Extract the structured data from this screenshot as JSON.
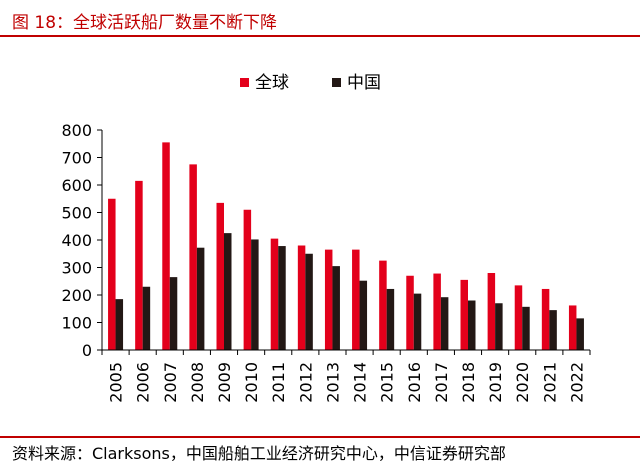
{
  "header": {
    "title": "图 18：全球活跃船厂数量不断下降"
  },
  "footer": {
    "source": "资料来源：Clarksons，中国船舶工业经济研究中心，中信证券研究部"
  },
  "colors": {
    "accent": "#c00000",
    "series_global": "#e3001b",
    "series_china": "#231815"
  },
  "chart_data": {
    "type": "bar",
    "categories": [
      "2005",
      "2006",
      "2007",
      "2008",
      "2009",
      "2010",
      "2011",
      "2012",
      "2013",
      "2014",
      "2015",
      "2016",
      "2017",
      "2018",
      "2019",
      "2020",
      "2021",
      "2022"
    ],
    "series": [
      {
        "name": "全球",
        "values": [
          550,
          615,
          755,
          675,
          535,
          510,
          405,
          380,
          365,
          365,
          325,
          270,
          278,
          255,
          280,
          235,
          222,
          162
        ]
      },
      {
        "name": "中国",
        "values": [
          185,
          230,
          265,
          372,
          425,
          402,
          378,
          350,
          305,
          252,
          222,
          205,
          192,
          180,
          170,
          157,
          145,
          115
        ]
      }
    ],
    "ylim": [
      0,
      800
    ],
    "yticks": [
      "0",
      "100",
      "200",
      "300",
      "400",
      "500",
      "600",
      "700",
      "800"
    ],
    "legend_position": "top-center",
    "grid": false,
    "title": "",
    "xlabel": "",
    "ylabel": ""
  }
}
